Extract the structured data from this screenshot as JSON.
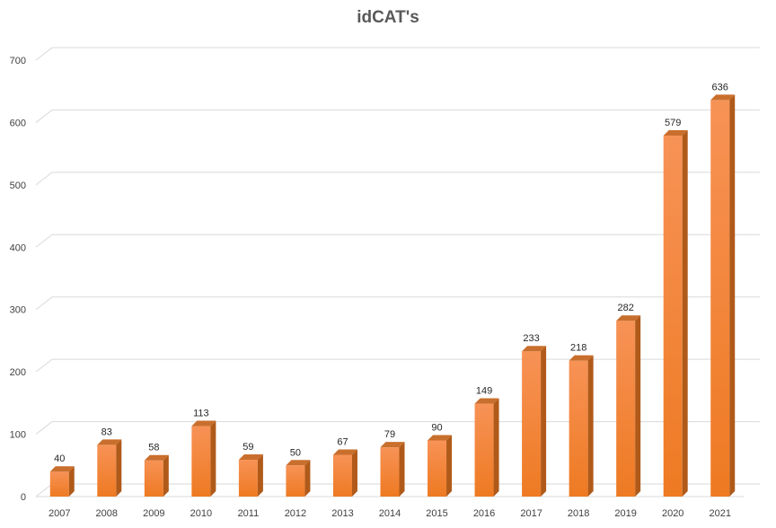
{
  "chart_data": {
    "type": "bar",
    "title": "idCAT's",
    "xlabel": "",
    "ylabel": "",
    "categories": [
      "2007",
      "2008",
      "2009",
      "2010",
      "2011",
      "2012",
      "2013",
      "2014",
      "2015",
      "2016",
      "2017",
      "2018",
      "2019",
      "2020",
      "2021"
    ],
    "values": [
      40,
      83,
      58,
      113,
      59,
      50,
      67,
      79,
      90,
      149,
      233,
      218,
      282,
      579,
      636
    ],
    "ylim": [
      0,
      700
    ],
    "yticks": [
      "0",
      "100",
      "200",
      "300",
      "400",
      "500",
      "600",
      "700"
    ],
    "grid": true,
    "legend": "none",
    "data_labels": true,
    "style": "3d-column",
    "colors": {
      "bar_front_top": "#f79256",
      "bar_front_bottom": "#ee7a22",
      "bar_side": "#b05a1a",
      "bar_top": "#c96f2d",
      "grid": "#d9d9d9",
      "axis_text": "#404040",
      "title": "#595959"
    }
  }
}
